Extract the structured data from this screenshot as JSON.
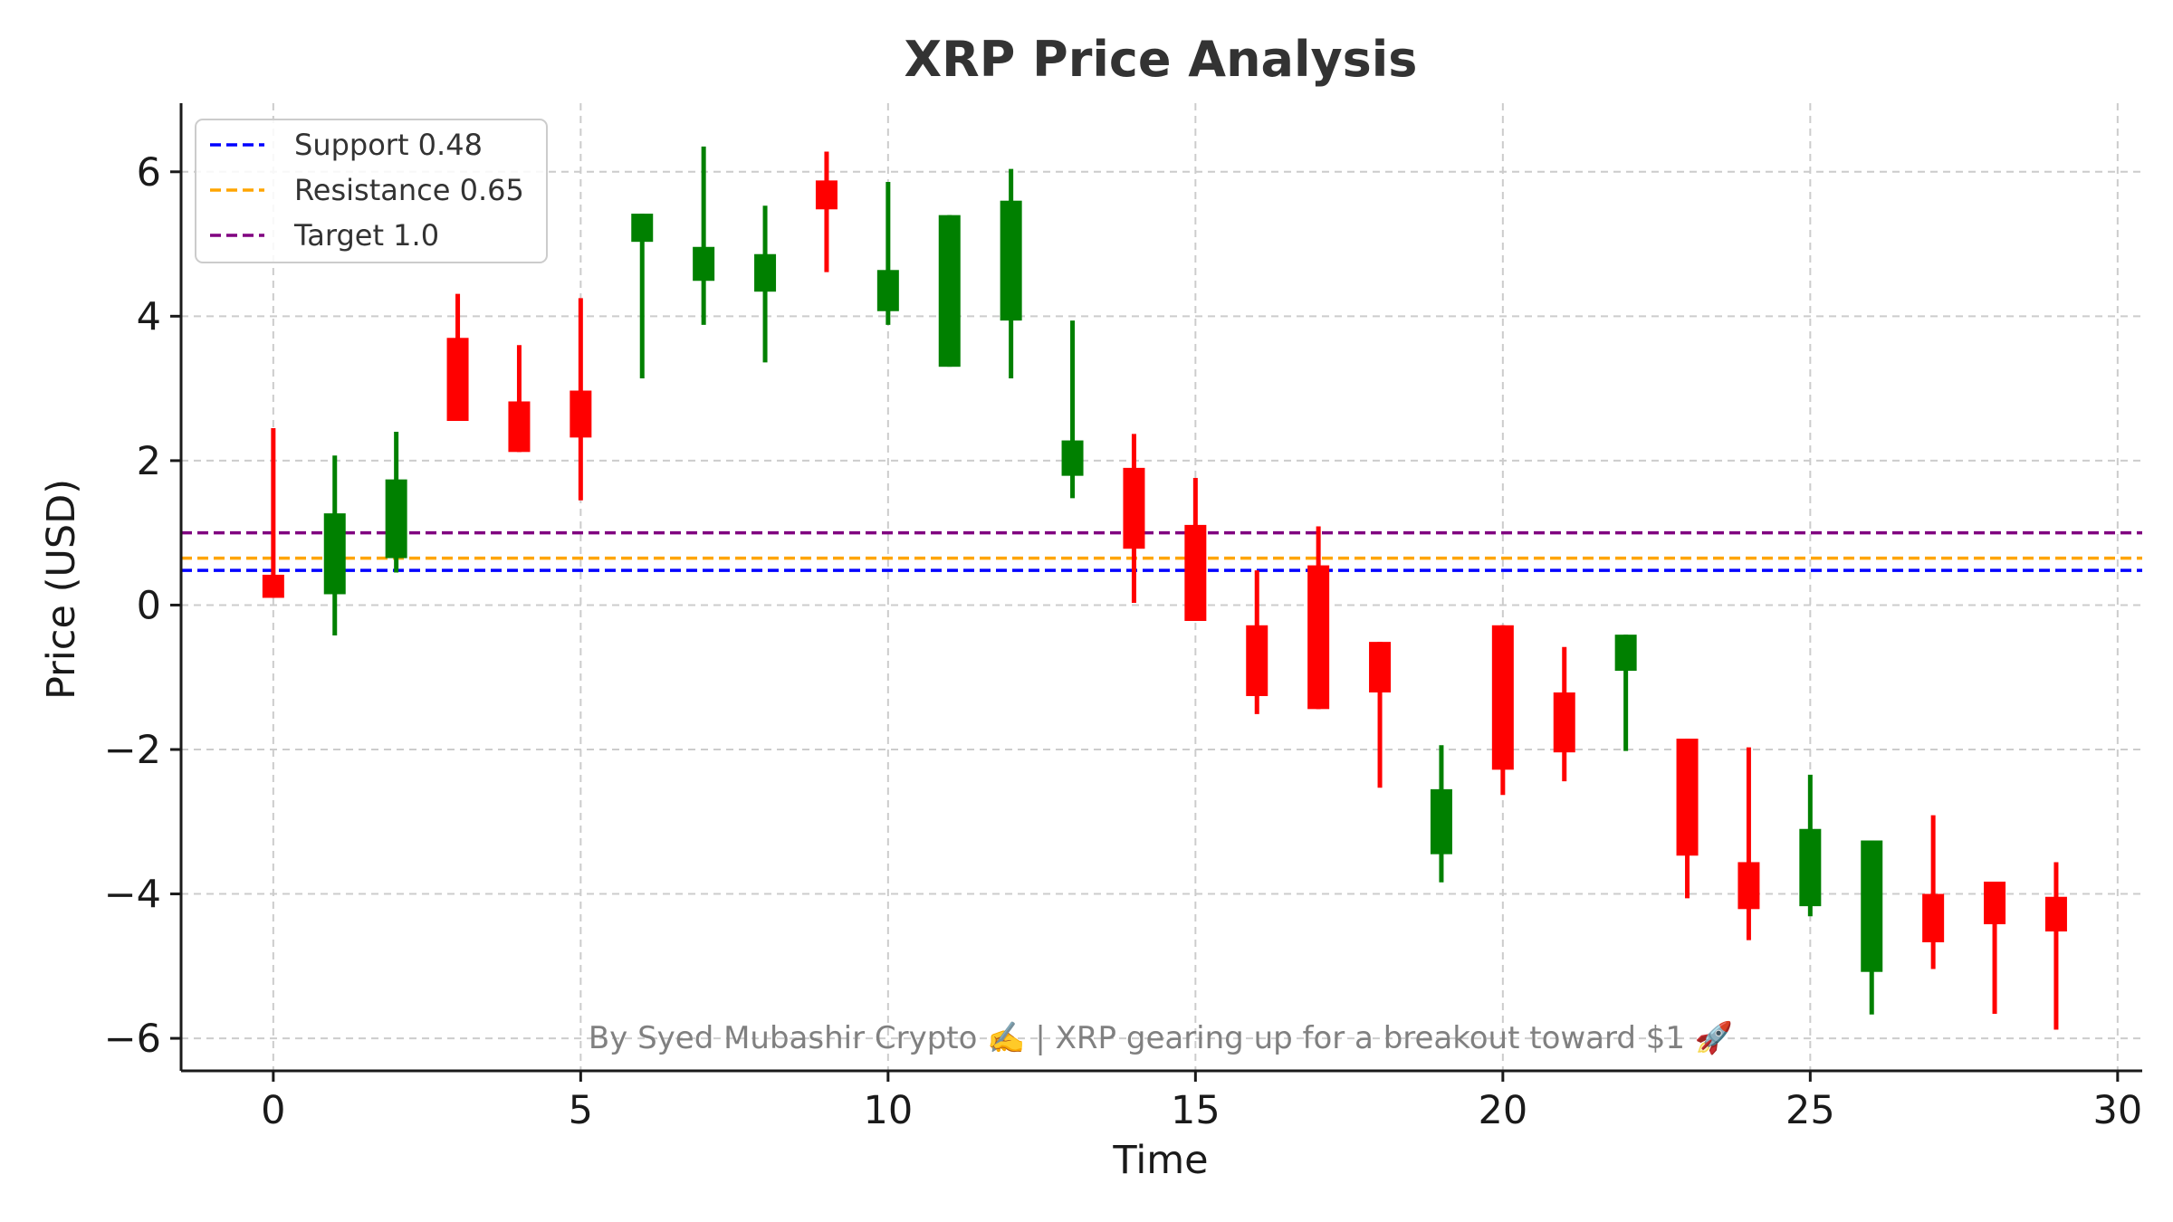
{
  "chart_data": {
    "type": "candlestick",
    "title": "XRP Price Analysis",
    "xlabel": "Time",
    "ylabel": "Price (USD)",
    "xlim": [
      -1.5,
      30.4
    ],
    "ylim": [
      -6.45,
      6.95
    ],
    "x_ticks": [
      0,
      5,
      10,
      15,
      20,
      25,
      30
    ],
    "x_tick_labels": [
      "0",
      "5",
      "10",
      "15",
      "20",
      "25",
      "30"
    ],
    "y_ticks": [
      -6,
      -4,
      -2,
      0,
      2,
      4,
      6
    ],
    "y_tick_labels": [
      "−6",
      "−4",
      "−2",
      "0",
      "2",
      "4",
      "6"
    ],
    "grid": true,
    "legend_position": "top-left",
    "up_color": "#008000",
    "down_color": "#ff0000",
    "candles": [
      {
        "t": 0,
        "open": 0.42,
        "close": 0.1,
        "high": 2.45,
        "low": 0.1
      },
      {
        "t": 1,
        "open": 0.15,
        "close": 1.27,
        "high": 2.07,
        "low": -0.42
      },
      {
        "t": 2,
        "open": 0.65,
        "close": 1.74,
        "high": 2.4,
        "low": 0.45
      },
      {
        "t": 3,
        "open": 3.7,
        "close": 2.55,
        "high": 4.31,
        "low": 2.55
      },
      {
        "t": 4,
        "open": 2.82,
        "close": 2.12,
        "high": 3.6,
        "low": 2.12
      },
      {
        "t": 5,
        "open": 2.97,
        "close": 2.32,
        "high": 4.25,
        "low": 1.45
      },
      {
        "t": 6,
        "open": 5.03,
        "close": 5.42,
        "high": 5.42,
        "low": 3.14
      },
      {
        "t": 7,
        "open": 4.49,
        "close": 4.96,
        "high": 6.35,
        "low": 3.88
      },
      {
        "t": 8,
        "open": 4.34,
        "close": 4.86,
        "high": 5.53,
        "low": 3.36
      },
      {
        "t": 9,
        "open": 5.88,
        "close": 5.48,
        "high": 6.28,
        "low": 4.61
      },
      {
        "t": 10,
        "open": 4.07,
        "close": 4.64,
        "high": 5.86,
        "low": 3.88
      },
      {
        "t": 11,
        "open": 3.3,
        "close": 5.4,
        "high": 5.4,
        "low": 3.3
      },
      {
        "t": 12,
        "open": 3.94,
        "close": 5.6,
        "high": 6.04,
        "low": 3.14
      },
      {
        "t": 13,
        "open": 1.79,
        "close": 2.28,
        "high": 3.94,
        "low": 1.48
      },
      {
        "t": 14,
        "open": 1.9,
        "close": 0.78,
        "high": 2.37,
        "low": 0.03
      },
      {
        "t": 15,
        "open": 1.11,
        "close": -0.22,
        "high": 1.76,
        "low": -0.22
      },
      {
        "t": 16,
        "open": -0.28,
        "close": -1.26,
        "high": 0.48,
        "low": -1.51
      },
      {
        "t": 17,
        "open": 0.55,
        "close": -1.44,
        "high": 1.09,
        "low": -1.44
      },
      {
        "t": 18,
        "open": -0.51,
        "close": -1.21,
        "high": -0.51,
        "low": -2.53
      },
      {
        "t": 19,
        "open": -3.45,
        "close": -2.55,
        "high": -1.94,
        "low": -3.84
      },
      {
        "t": 20,
        "open": -0.28,
        "close": -2.28,
        "high": -0.28,
        "low": -2.63
      },
      {
        "t": 21,
        "open": -1.21,
        "close": -2.04,
        "high": -0.58,
        "low": -2.44
      },
      {
        "t": 22,
        "open": -0.91,
        "close": -0.41,
        "high": -0.41,
        "low": -2.02
      },
      {
        "t": 23,
        "open": -1.85,
        "close": -3.47,
        "high": -1.85,
        "low": -4.06
      },
      {
        "t": 24,
        "open": -3.56,
        "close": -4.21,
        "high": -1.97,
        "low": -4.64
      },
      {
        "t": 25,
        "open": -4.17,
        "close": -3.1,
        "high": -2.35,
        "low": -4.31
      },
      {
        "t": 26,
        "open": -5.08,
        "close": -3.26,
        "high": -3.26,
        "low": -5.67
      },
      {
        "t": 27,
        "open": -4.0,
        "close": -4.67,
        "high": -2.91,
        "low": -5.04
      },
      {
        "t": 28,
        "open": -3.83,
        "close": -4.42,
        "high": -3.83,
        "low": -5.66
      },
      {
        "t": 29,
        "open": -4.04,
        "close": -4.52,
        "high": -3.56,
        "low": -5.88
      }
    ],
    "reference_lines": [
      {
        "label": "Support 0.48",
        "value": 0.48,
        "color": "#0000ff"
      },
      {
        "label": "Resistance 0.65",
        "value": 0.65,
        "color": "#ffa500"
      },
      {
        "label": "Target 1.0",
        "value": 1.0,
        "color": "#800080"
      }
    ],
    "watermark": "By Syed Mubashir Crypto ✍️ | XRP gearing up for a breakout toward $1 🚀"
  }
}
